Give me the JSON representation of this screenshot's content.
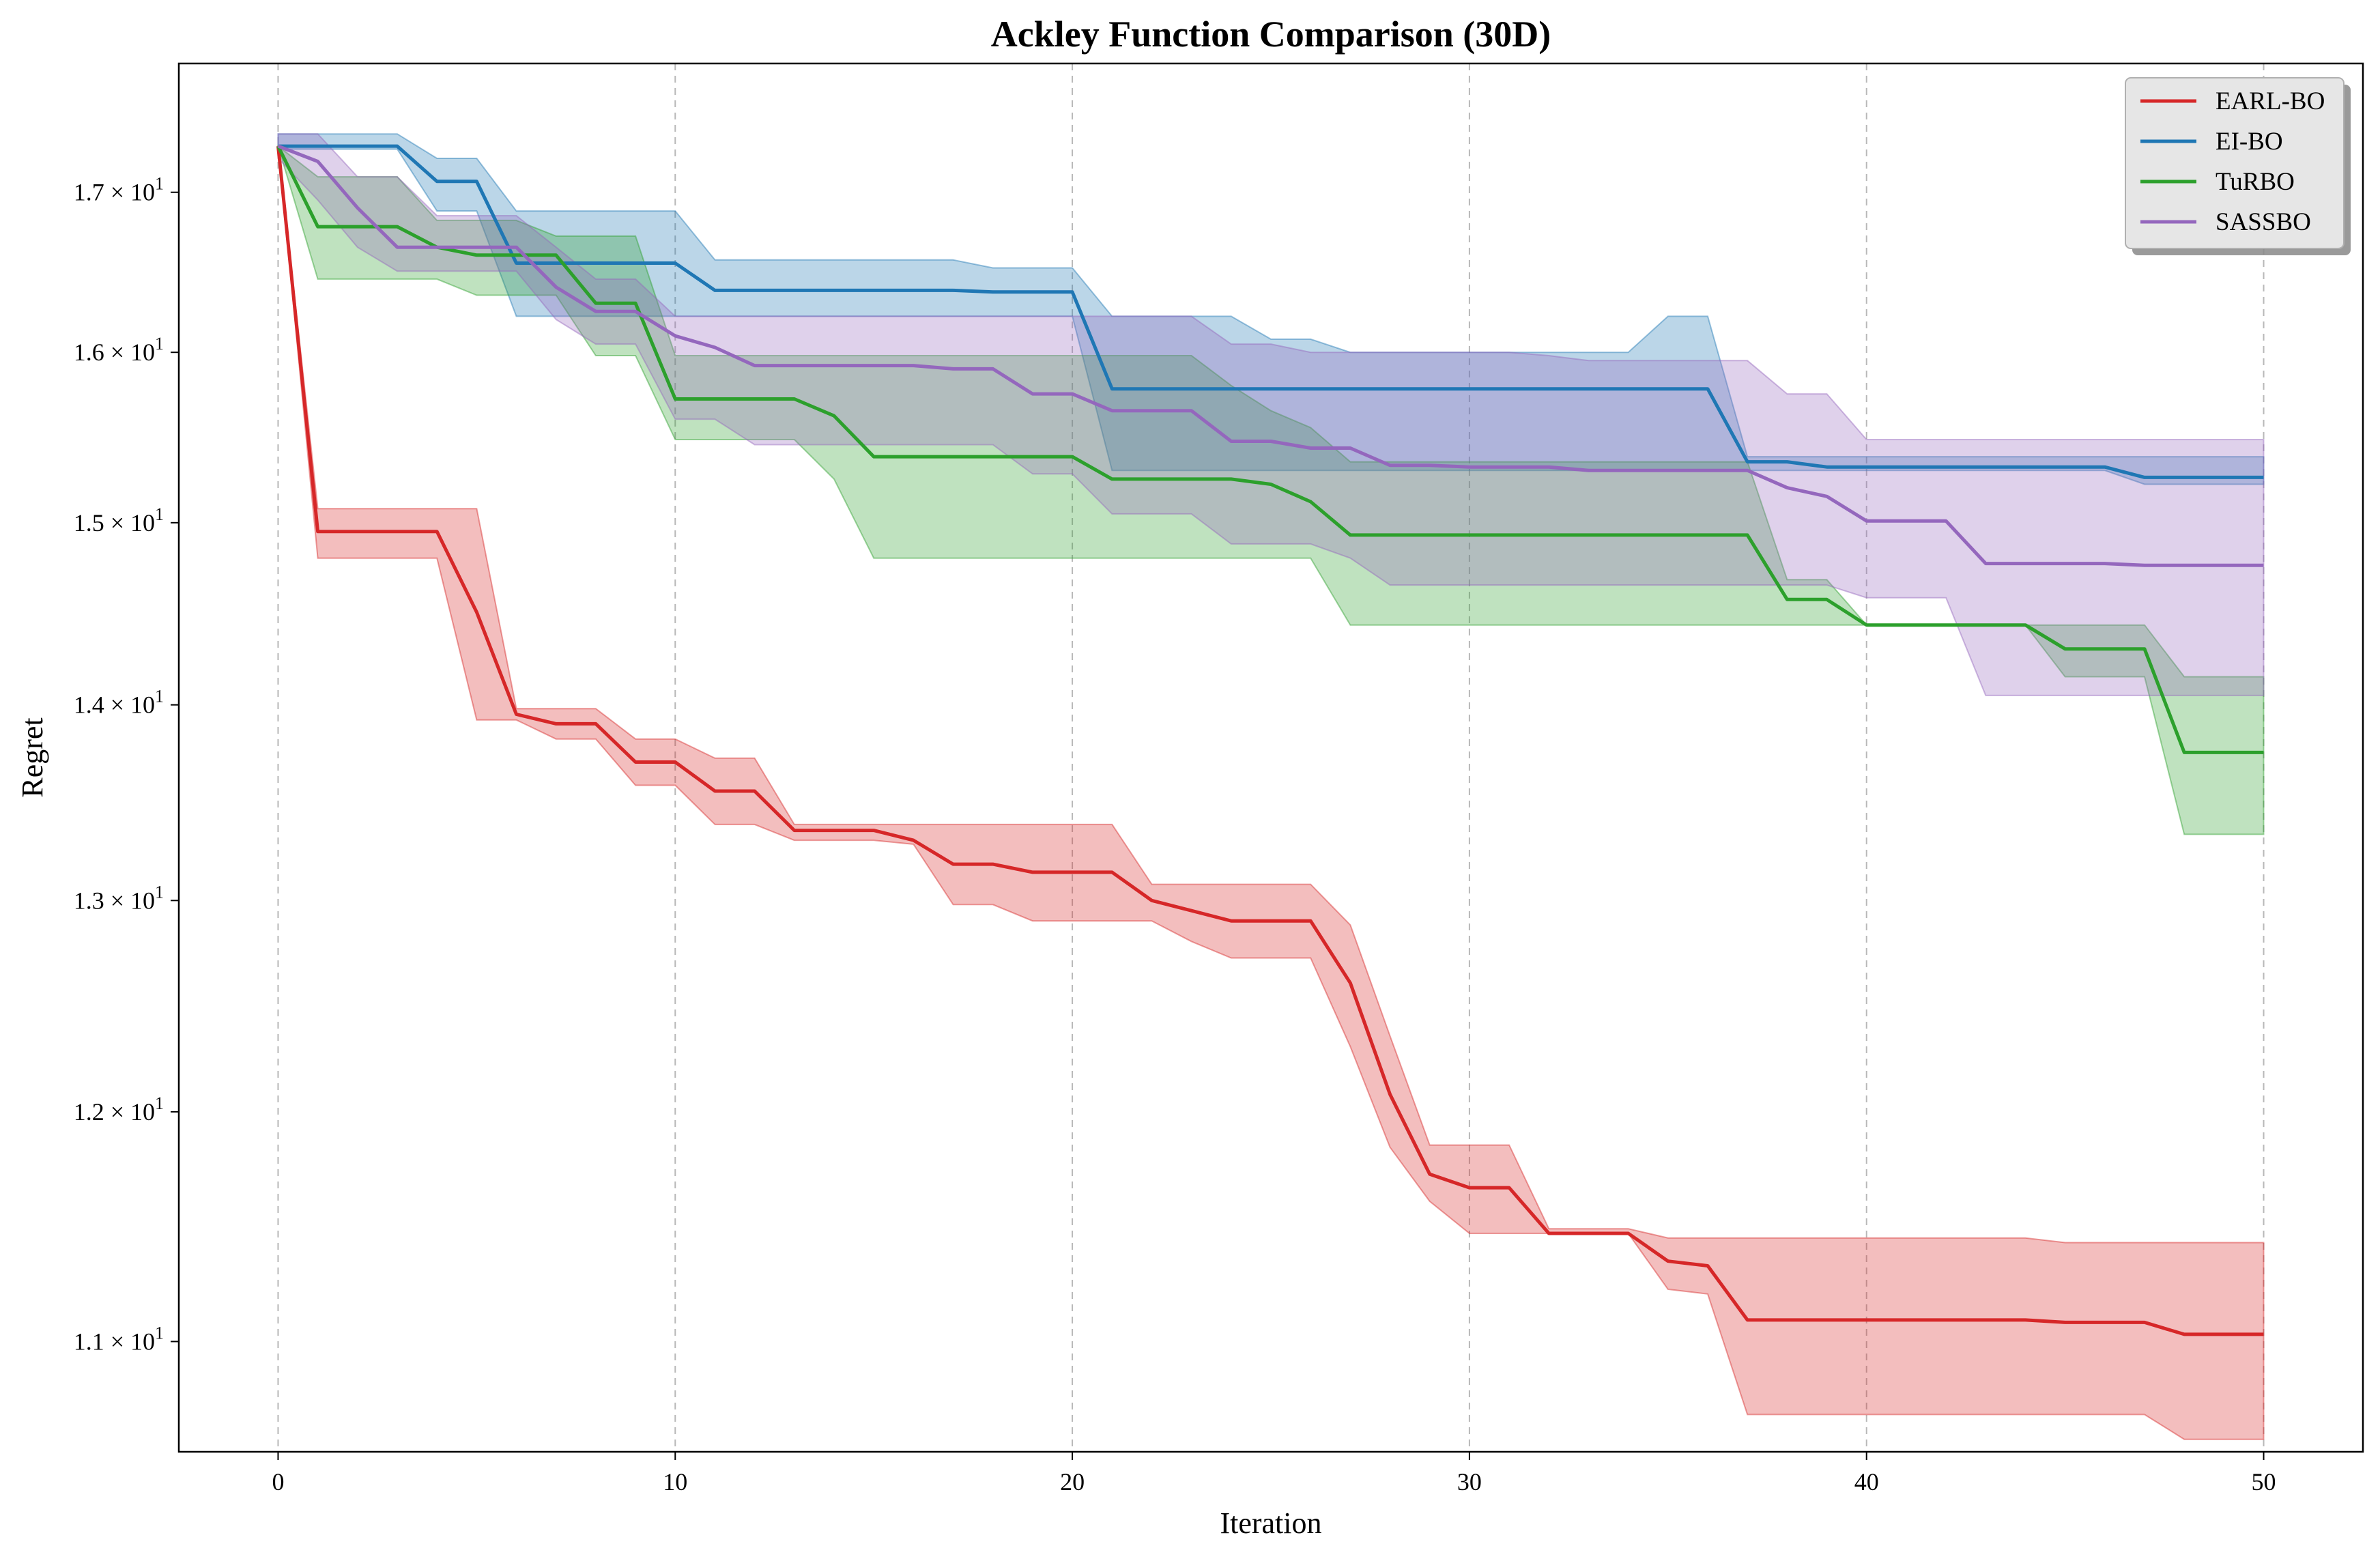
{
  "chart_data": {
    "type": "line",
    "title": "Ackley Function Comparison (30D)",
    "xlabel": "Iteration",
    "ylabel": "Regret",
    "xlim": [
      -2.5,
      52.5
    ],
    "ylim": [
      10.55,
      17.85
    ],
    "yscale": "log",
    "grid": "x-dashed",
    "legend_position": "top-right",
    "xticks": [
      0,
      10,
      20,
      30,
      40,
      50
    ],
    "xtick_labels": [
      "0",
      "10",
      "20",
      "30",
      "40",
      "50"
    ],
    "yticks": [
      {
        "value": 11,
        "base": "1.1",
        "exp": "1"
      },
      {
        "value": 12,
        "base": "1.2",
        "exp": "1"
      },
      {
        "value": 13,
        "base": "1.3",
        "exp": "1"
      },
      {
        "value": 14,
        "base": "1.4",
        "exp": "1"
      },
      {
        "value": 15,
        "base": "1.5",
        "exp": "1"
      },
      {
        "value": 16,
        "base": "1.6",
        "exp": "1"
      },
      {
        "value": 17,
        "base": "1.7",
        "exp": "1"
      }
    ],
    "ytick_times": "×",
    "ytick_mantissa_base": "10",
    "series": [
      {
        "name": "EARL-BO",
        "color": "#d62728",
        "x": [
          0,
          1,
          2,
          3,
          4,
          5,
          6,
          7,
          8,
          9,
          10,
          11,
          12,
          13,
          14,
          15,
          16,
          17,
          18,
          19,
          20,
          21,
          22,
          23,
          24,
          25,
          26,
          27,
          28,
          29,
          30,
          31,
          32,
          33,
          34,
          35,
          36,
          37,
          38,
          39,
          40,
          41,
          42,
          43,
          44,
          45,
          46,
          47,
          48,
          49,
          50
        ],
        "mean": [
          17.3,
          14.95,
          14.95,
          14.95,
          14.95,
          14.5,
          13.95,
          13.9,
          13.9,
          13.7,
          13.7,
          13.55,
          13.55,
          13.35,
          13.35,
          13.35,
          13.3,
          13.18,
          13.18,
          13.14,
          13.14,
          13.14,
          13.0,
          12.95,
          12.9,
          12.9,
          12.9,
          12.6,
          12.08,
          11.72,
          11.66,
          11.66,
          11.46,
          11.46,
          11.46,
          11.34,
          11.32,
          11.09,
          11.09,
          11.09,
          11.09,
          11.09,
          11.09,
          11.09,
          11.09,
          11.08,
          11.08,
          11.08,
          11.03,
          11.03,
          11.03
        ],
        "upper": [
          17.3,
          15.08,
          15.08,
          15.08,
          15.08,
          15.08,
          13.98,
          13.98,
          13.98,
          13.82,
          13.82,
          13.72,
          13.72,
          13.38,
          13.38,
          13.38,
          13.38,
          13.38,
          13.38,
          13.38,
          13.38,
          13.38,
          13.08,
          13.08,
          13.08,
          13.08,
          13.08,
          12.88,
          12.35,
          11.85,
          11.85,
          11.85,
          11.48,
          11.48,
          11.48,
          11.44,
          11.44,
          11.44,
          11.44,
          11.44,
          11.44,
          11.44,
          11.44,
          11.44,
          11.44,
          11.42,
          11.42,
          11.42,
          11.42,
          11.42,
          11.42
        ],
        "lower": [
          17.3,
          14.8,
          14.8,
          14.8,
          14.8,
          13.92,
          13.92,
          13.82,
          13.82,
          13.58,
          13.58,
          13.38,
          13.38,
          13.3,
          13.3,
          13.3,
          13.28,
          12.98,
          12.98,
          12.9,
          12.9,
          12.9,
          12.9,
          12.8,
          12.72,
          12.72,
          12.72,
          12.3,
          11.84,
          11.6,
          11.46,
          11.46,
          11.46,
          11.46,
          11.46,
          11.22,
          11.2,
          10.7,
          10.7,
          10.7,
          10.7,
          10.7,
          10.7,
          10.7,
          10.7,
          10.7,
          10.7,
          10.7,
          10.6,
          10.6,
          10.6
        ]
      },
      {
        "name": "EI-BO",
        "color": "#1f77b4",
        "x": [
          0,
          1,
          2,
          3,
          4,
          5,
          6,
          7,
          8,
          9,
          10,
          11,
          12,
          13,
          14,
          15,
          16,
          17,
          18,
          19,
          20,
          21,
          22,
          23,
          24,
          25,
          26,
          27,
          28,
          29,
          30,
          31,
          32,
          33,
          34,
          35,
          36,
          37,
          38,
          39,
          40,
          41,
          42,
          43,
          44,
          45,
          46,
          47,
          48,
          49,
          50
        ],
        "mean": [
          17.3,
          17.3,
          17.3,
          17.3,
          17.07,
          17.07,
          16.55,
          16.55,
          16.55,
          16.55,
          16.55,
          16.38,
          16.38,
          16.38,
          16.38,
          16.38,
          16.38,
          16.38,
          16.37,
          16.37,
          16.37,
          15.78,
          15.78,
          15.78,
          15.78,
          15.78,
          15.78,
          15.78,
          15.78,
          15.78,
          15.78,
          15.78,
          15.78,
          15.78,
          15.78,
          15.78,
          15.78,
          15.35,
          15.35,
          15.32,
          15.32,
          15.32,
          15.32,
          15.32,
          15.32,
          15.32,
          15.32,
          15.26,
          15.26,
          15.26,
          15.26
        ],
        "upper": [
          17.38,
          17.38,
          17.38,
          17.38,
          17.22,
          17.22,
          16.88,
          16.88,
          16.88,
          16.88,
          16.88,
          16.57,
          16.57,
          16.57,
          16.57,
          16.57,
          16.57,
          16.57,
          16.52,
          16.52,
          16.52,
          16.22,
          16.22,
          16.22,
          16.22,
          16.08,
          16.08,
          16.0,
          16.0,
          16.0,
          16.0,
          16.0,
          16.0,
          16.0,
          16.0,
          16.22,
          16.22,
          15.38,
          15.38,
          15.38,
          15.38,
          15.38,
          15.38,
          15.38,
          15.38,
          15.38,
          15.38,
          15.38,
          15.38,
          15.38,
          15.38
        ],
        "lower": [
          17.28,
          17.28,
          17.28,
          17.28,
          16.88,
          16.88,
          16.22,
          16.22,
          16.22,
          16.22,
          16.22,
          16.22,
          16.22,
          16.22,
          16.22,
          16.22,
          16.22,
          16.22,
          16.22,
          16.22,
          16.22,
          15.3,
          15.3,
          15.3,
          15.3,
          15.3,
          15.3,
          15.3,
          15.3,
          15.3,
          15.3,
          15.3,
          15.3,
          15.3,
          15.3,
          15.3,
          15.3,
          15.3,
          15.3,
          15.3,
          15.3,
          15.3,
          15.3,
          15.3,
          15.3,
          15.3,
          15.3,
          15.22,
          15.22,
          15.22,
          15.22
        ]
      },
      {
        "name": "TuRBO",
        "color": "#2ca02c",
        "x": [
          0,
          1,
          2,
          3,
          4,
          5,
          6,
          7,
          8,
          9,
          10,
          11,
          12,
          13,
          14,
          15,
          16,
          17,
          18,
          19,
          20,
          21,
          22,
          23,
          24,
          25,
          26,
          27,
          28,
          29,
          30,
          31,
          32,
          33,
          34,
          35,
          36,
          37,
          38,
          39,
          40,
          41,
          42,
          43,
          44,
          45,
          46,
          47,
          48,
          49,
          50
        ],
        "mean": [
          17.3,
          16.78,
          16.78,
          16.78,
          16.65,
          16.6,
          16.6,
          16.6,
          16.3,
          16.3,
          15.72,
          15.72,
          15.72,
          15.72,
          15.62,
          15.38,
          15.38,
          15.38,
          15.38,
          15.38,
          15.38,
          15.25,
          15.25,
          15.25,
          15.25,
          15.22,
          15.12,
          14.93,
          14.93,
          14.93,
          14.93,
          14.93,
          14.93,
          14.93,
          14.93,
          14.93,
          14.93,
          14.93,
          14.57,
          14.57,
          14.43,
          14.43,
          14.43,
          14.43,
          14.43,
          14.3,
          14.3,
          14.3,
          13.75,
          13.75,
          13.75
        ],
        "upper": [
          17.3,
          17.1,
          17.1,
          17.1,
          16.82,
          16.82,
          16.82,
          16.72,
          16.72,
          16.72,
          15.98,
          15.98,
          15.98,
          15.98,
          15.98,
          15.98,
          15.98,
          15.98,
          15.98,
          15.98,
          15.98,
          15.98,
          15.98,
          15.98,
          15.8,
          15.65,
          15.55,
          15.35,
          15.35,
          15.35,
          15.35,
          15.35,
          15.35,
          15.35,
          15.35,
          15.35,
          15.35,
          15.35,
          14.68,
          14.68,
          14.43,
          14.43,
          14.43,
          14.43,
          14.43,
          14.43,
          14.43,
          14.43,
          14.15,
          14.15,
          14.15
        ],
        "lower": [
          17.3,
          16.45,
          16.45,
          16.45,
          16.45,
          16.35,
          16.35,
          16.35,
          15.98,
          15.98,
          15.48,
          15.48,
          15.48,
          15.48,
          15.25,
          14.8,
          14.8,
          14.8,
          14.8,
          14.8,
          14.8,
          14.8,
          14.8,
          14.8,
          14.8,
          14.8,
          14.8,
          14.43,
          14.43,
          14.43,
          14.43,
          14.43,
          14.43,
          14.43,
          14.43,
          14.43,
          14.43,
          14.43,
          14.43,
          14.43,
          14.43,
          14.43,
          14.43,
          14.43,
          14.43,
          14.15,
          14.15,
          14.15,
          13.33,
          13.33,
          13.33
        ]
      },
      {
        "name": "SASSBO",
        "color": "#9467bd",
        "x": [
          0,
          1,
          2,
          3,
          4,
          5,
          6,
          7,
          8,
          9,
          10,
          11,
          12,
          13,
          14,
          15,
          16,
          17,
          18,
          19,
          20,
          21,
          22,
          23,
          24,
          25,
          26,
          27,
          28,
          29,
          30,
          31,
          32,
          33,
          34,
          35,
          36,
          37,
          38,
          39,
          40,
          41,
          42,
          43,
          44,
          45,
          46,
          47,
          48,
          49,
          50
        ],
        "mean": [
          17.3,
          17.2,
          16.9,
          16.65,
          16.65,
          16.65,
          16.65,
          16.4,
          16.25,
          16.25,
          16.1,
          16.03,
          15.92,
          15.92,
          15.92,
          15.92,
          15.92,
          15.9,
          15.9,
          15.75,
          15.75,
          15.65,
          15.65,
          15.65,
          15.47,
          15.47,
          15.43,
          15.43,
          15.33,
          15.33,
          15.32,
          15.32,
          15.32,
          15.3,
          15.3,
          15.3,
          15.3,
          15.3,
          15.2,
          15.15,
          15.01,
          15.01,
          15.01,
          14.77,
          14.77,
          14.77,
          14.77,
          14.76,
          14.76,
          14.76,
          14.76
        ],
        "upper": [
          17.38,
          17.38,
          17.1,
          17.1,
          16.85,
          16.85,
          16.85,
          16.65,
          16.45,
          16.45,
          16.22,
          16.22,
          16.22,
          16.22,
          16.22,
          16.22,
          16.22,
          16.22,
          16.22,
          16.22,
          16.22,
          16.22,
          16.22,
          16.22,
          16.05,
          16.05,
          16.0,
          16.0,
          16.0,
          16.0,
          16.0,
          16.0,
          15.98,
          15.95,
          15.95,
          15.95,
          15.95,
          15.95,
          15.75,
          15.75,
          15.48,
          15.48,
          15.48,
          15.48,
          15.48,
          15.48,
          15.48,
          15.48,
          15.48,
          15.48,
          15.48
        ],
        "lower": [
          17.22,
          16.95,
          16.65,
          16.5,
          16.5,
          16.5,
          16.5,
          16.2,
          16.05,
          16.05,
          15.6,
          15.6,
          15.45,
          15.45,
          15.45,
          15.45,
          15.45,
          15.45,
          15.45,
          15.28,
          15.28,
          15.05,
          15.05,
          15.05,
          14.88,
          14.88,
          14.88,
          14.8,
          14.65,
          14.65,
          14.65,
          14.65,
          14.65,
          14.65,
          14.65,
          14.65,
          14.65,
          14.65,
          14.65,
          14.65,
          14.58,
          14.58,
          14.58,
          14.05,
          14.05,
          14.05,
          14.05,
          14.05,
          14.05,
          14.05,
          14.05
        ]
      }
    ]
  }
}
